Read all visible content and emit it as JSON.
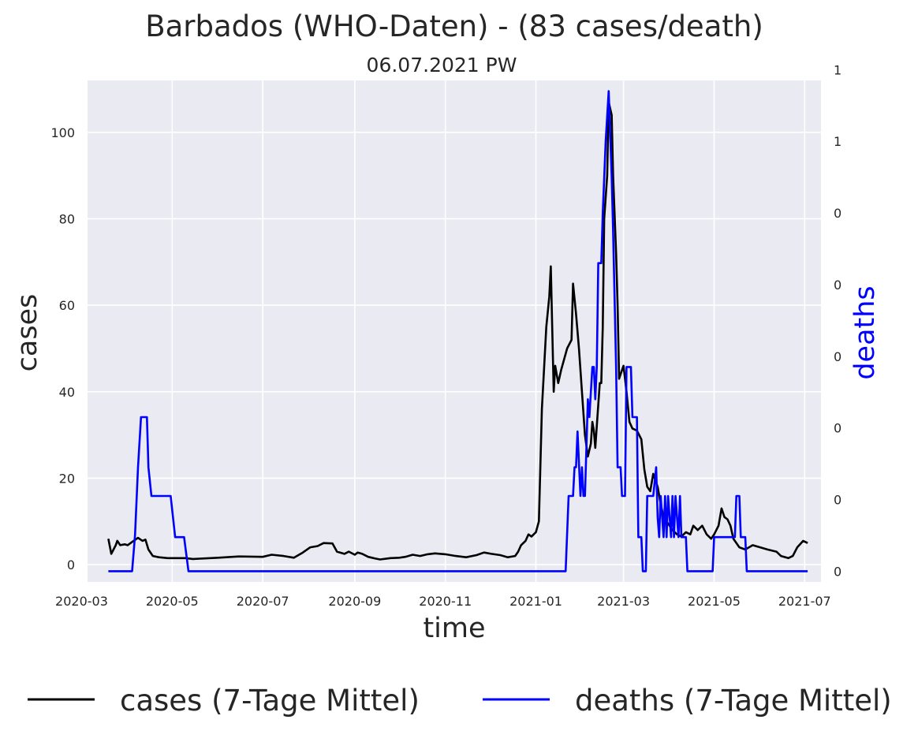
{
  "chart_data": {
    "type": "line",
    "title": "Barbados (WHO-Daten) - (83 cases/death)",
    "subtitle": "06.07.2021 PW",
    "xlabel": "time",
    "ylabel": "cases",
    "ylabel_right": "deaths",
    "x_ticks": [
      "2020-03",
      "2020-05",
      "2020-07",
      "2020-09",
      "2020-11",
      "2021-01",
      "2021-03",
      "2021-05",
      "2021-07"
    ],
    "y_ticks": [
      0,
      20,
      40,
      60,
      80,
      100
    ],
    "y_right_ticks": [
      "0",
      "0",
      "0",
      "0",
      "0",
      "0",
      "1",
      "1"
    ],
    "xlim": [
      "2020-03-05",
      "2021-07-12"
    ],
    "ylim": [
      -4,
      112
    ],
    "y2lim": [
      -0.03,
      1.37
    ],
    "grid": true,
    "legend_placement": "bottom-center",
    "series": [
      {
        "name": "cases (7-Tage Mittel)",
        "axis": "left",
        "color": "#000000",
        "points": [
          [
            "2020-03-19",
            6
          ],
          [
            "2020-03-21",
            2.5
          ],
          [
            "2020-03-24",
            4.5
          ],
          [
            "2020-03-25",
            5.5
          ],
          [
            "2020-03-27",
            4.5
          ],
          [
            "2020-03-30",
            4.7
          ],
          [
            "2020-04-01",
            4.5
          ],
          [
            "2020-04-05",
            5.5
          ],
          [
            "2020-04-08",
            6.2
          ],
          [
            "2020-04-11",
            5.5
          ],
          [
            "2020-04-13",
            5.8
          ],
          [
            "2020-04-15",
            3.5
          ],
          [
            "2020-04-18",
            2
          ],
          [
            "2020-04-22",
            1.7
          ],
          [
            "2020-04-28",
            1.5
          ],
          [
            "2020-05-01",
            1.5
          ],
          [
            "2020-05-10",
            1.5
          ],
          [
            "2020-05-15",
            1.3
          ],
          [
            "2020-06-01",
            1.6
          ],
          [
            "2020-06-15",
            1.9
          ],
          [
            "2020-07-01",
            1.8
          ],
          [
            "2020-07-07",
            2.3
          ],
          [
            "2020-07-15",
            2
          ],
          [
            "2020-07-22",
            1.6
          ],
          [
            "2020-07-28",
            2.8
          ],
          [
            "2020-08-02",
            4
          ],
          [
            "2020-08-07",
            4.3
          ],
          [
            "2020-08-11",
            5
          ],
          [
            "2020-08-17",
            4.9
          ],
          [
            "2020-08-20",
            3
          ],
          [
            "2020-08-25",
            2.5
          ],
          [
            "2020-08-28",
            3
          ],
          [
            "2020-09-01",
            2.3
          ],
          [
            "2020-09-03",
            2.8
          ],
          [
            "2020-09-06",
            2.5
          ],
          [
            "2020-09-10",
            1.8
          ],
          [
            "2020-09-15",
            1.4
          ],
          [
            "2020-09-18",
            1.2
          ],
          [
            "2020-09-25",
            1.5
          ],
          [
            "2020-10-01",
            1.6
          ],
          [
            "2020-10-05",
            1.8
          ],
          [
            "2020-10-10",
            2.3
          ],
          [
            "2020-10-15",
            2
          ],
          [
            "2020-10-20",
            2.4
          ],
          [
            "2020-10-25",
            2.6
          ],
          [
            "2020-11-01",
            2.4
          ],
          [
            "2020-11-08",
            2
          ],
          [
            "2020-11-15",
            1.7
          ],
          [
            "2020-11-22",
            2.2
          ],
          [
            "2020-11-27",
            2.8
          ],
          [
            "2020-12-02",
            2.5
          ],
          [
            "2020-12-08",
            2.2
          ],
          [
            "2020-12-13",
            1.7
          ],
          [
            "2020-12-18",
            2
          ],
          [
            "2020-12-20",
            3
          ],
          [
            "2020-12-22",
            4.5
          ],
          [
            "2020-12-25",
            5.5
          ],
          [
            "2020-12-27",
            7
          ],
          [
            "2020-12-29",
            6.5
          ],
          [
            "2021-01-01",
            7.5
          ],
          [
            "2021-01-03",
            10
          ],
          [
            "2021-01-05",
            36
          ],
          [
            "2021-01-08",
            55
          ],
          [
            "2021-01-10",
            62
          ],
          [
            "2021-01-11",
            69
          ],
          [
            "2021-01-12",
            54
          ],
          [
            "2021-01-13",
            40
          ],
          [
            "2021-01-14",
            46
          ],
          [
            "2021-01-16",
            42
          ],
          [
            "2021-01-18",
            45
          ],
          [
            "2021-01-22",
            50
          ],
          [
            "2021-01-25",
            52
          ],
          [
            "2021-01-26",
            65
          ],
          [
            "2021-01-28",
            58
          ],
          [
            "2021-01-30",
            50
          ],
          [
            "2021-02-01",
            40
          ],
          [
            "2021-02-03",
            30
          ],
          [
            "2021-02-05",
            25
          ],
          [
            "2021-02-07",
            28
          ],
          [
            "2021-02-08",
            33
          ],
          [
            "2021-02-09",
            31
          ],
          [
            "2021-02-10",
            27
          ],
          [
            "2021-02-12",
            37
          ],
          [
            "2021-02-13",
            42
          ],
          [
            "2021-02-14",
            42
          ],
          [
            "2021-02-15",
            55
          ],
          [
            "2021-02-16",
            80
          ],
          [
            "2021-02-18",
            90
          ],
          [
            "2021-02-19",
            107
          ],
          [
            "2021-02-21",
            104
          ],
          [
            "2021-02-22",
            90
          ],
          [
            "2021-02-24",
            72
          ],
          [
            "2021-02-25",
            60
          ],
          [
            "2021-02-26",
            43
          ],
          [
            "2021-02-28",
            45
          ],
          [
            "2021-03-01",
            46
          ],
          [
            "2021-03-03",
            40
          ],
          [
            "2021-03-05",
            33
          ],
          [
            "2021-03-07",
            31.5
          ],
          [
            "2021-03-10",
            31
          ],
          [
            "2021-03-13",
            29
          ],
          [
            "2021-03-15",
            22
          ],
          [
            "2021-03-17",
            18
          ],
          [
            "2021-03-19",
            17
          ],
          [
            "2021-03-21",
            21
          ],
          [
            "2021-03-24",
            18
          ],
          [
            "2021-03-26",
            14
          ],
          [
            "2021-03-28",
            11
          ],
          [
            "2021-03-31",
            9.5
          ],
          [
            "2021-04-03",
            8
          ],
          [
            "2021-04-06",
            7
          ],
          [
            "2021-04-09",
            6.5
          ],
          [
            "2021-04-12",
            7.5
          ],
          [
            "2021-04-15",
            7
          ],
          [
            "2021-04-17",
            9
          ],
          [
            "2021-04-20",
            8
          ],
          [
            "2021-04-23",
            9
          ],
          [
            "2021-04-26",
            7
          ],
          [
            "2021-04-29",
            6
          ],
          [
            "2021-05-01",
            7
          ],
          [
            "2021-05-04",
            9
          ],
          [
            "2021-05-06",
            13
          ],
          [
            "2021-05-08",
            11
          ],
          [
            "2021-05-10",
            10.5
          ],
          [
            "2021-05-12",
            9
          ],
          [
            "2021-05-14",
            6
          ],
          [
            "2021-05-18",
            4
          ],
          [
            "2021-05-22",
            3.5
          ],
          [
            "2021-05-27",
            4.5
          ],
          [
            "2021-06-01",
            4
          ],
          [
            "2021-06-06",
            3.5
          ],
          [
            "2021-06-12",
            3
          ],
          [
            "2021-06-15",
            2
          ],
          [
            "2021-06-20",
            1.5
          ],
          [
            "2021-06-23",
            2
          ],
          [
            "2021-06-26",
            4
          ],
          [
            "2021-06-30",
            5.5
          ],
          [
            "2021-07-03",
            5
          ]
        ]
      },
      {
        "name": "deaths (7-Tage Mittel)",
        "axis": "right",
        "color": "#0000ff",
        "points": [
          [
            "2020-03-19",
            0
          ],
          [
            "2020-04-04",
            0
          ],
          [
            "2020-04-06",
            0.1
          ],
          [
            "2020-04-08",
            0.29
          ],
          [
            "2020-04-10",
            0.43
          ],
          [
            "2020-04-14",
            0.43
          ],
          [
            "2020-04-15",
            0.29
          ],
          [
            "2020-04-17",
            0.21
          ],
          [
            "2020-04-30",
            0.21
          ],
          [
            "2020-05-03",
            0.095
          ],
          [
            "2020-05-09",
            0.095
          ],
          [
            "2020-05-12",
            0
          ],
          [
            "2021-01-21",
            0
          ],
          [
            "2021-01-23",
            0.21
          ],
          [
            "2021-01-26",
            0.21
          ],
          [
            "2021-01-27",
            0.29
          ],
          [
            "2021-01-28",
            0.29
          ],
          [
            "2021-01-29",
            0.39
          ],
          [
            "2021-01-31",
            0.21
          ],
          [
            "2021-02-01",
            0.29
          ],
          [
            "2021-02-02",
            0.21
          ],
          [
            "2021-02-03",
            0.21
          ],
          [
            "2021-02-05",
            0.48
          ],
          [
            "2021-02-06",
            0.43
          ],
          [
            "2021-02-08",
            0.57
          ],
          [
            "2021-02-09",
            0.57
          ],
          [
            "2021-02-10",
            0.48
          ],
          [
            "2021-02-11",
            0.57
          ],
          [
            "2021-02-12",
            0.86
          ],
          [
            "2021-02-14",
            0.86
          ],
          [
            "2021-02-15",
            1.0
          ],
          [
            "2021-02-17",
            1.2
          ],
          [
            "2021-02-19",
            1.34
          ],
          [
            "2021-02-21",
            1.1
          ],
          [
            "2021-02-22",
            0.95
          ],
          [
            "2021-02-24",
            0.57
          ],
          [
            "2021-02-25",
            0.29
          ],
          [
            "2021-02-27",
            0.29
          ],
          [
            "2021-02-28",
            0.21
          ],
          [
            "2021-03-02",
            0.21
          ],
          [
            "2021-03-03",
            0.57
          ],
          [
            "2021-03-04",
            0.57
          ],
          [
            "2021-03-06",
            0.57
          ],
          [
            "2021-03-07",
            0.43
          ],
          [
            "2021-03-10",
            0.43
          ],
          [
            "2021-03-11",
            0.095
          ],
          [
            "2021-03-13",
            0.095
          ],
          [
            "2021-03-14",
            0
          ],
          [
            "2021-03-16",
            0
          ],
          [
            "2021-03-17",
            0.21
          ],
          [
            "2021-03-21",
            0.21
          ],
          [
            "2021-03-23",
            0.29
          ],
          [
            "2021-03-24",
            0.15
          ],
          [
            "2021-03-25",
            0.095
          ],
          [
            "2021-03-26",
            0.21
          ],
          [
            "2021-03-28",
            0.095
          ],
          [
            "2021-03-29",
            0.21
          ],
          [
            "2021-03-30",
            0.095
          ],
          [
            "2021-03-31",
            0.21
          ],
          [
            "2021-04-02",
            0.095
          ],
          [
            "2021-04-03",
            0.21
          ],
          [
            "2021-04-04",
            0.095
          ],
          [
            "2021-04-05",
            0.21
          ],
          [
            "2021-04-07",
            0.095
          ],
          [
            "2021-04-08",
            0.21
          ],
          [
            "2021-04-09",
            0.095
          ],
          [
            "2021-04-12",
            0.095
          ],
          [
            "2021-04-13",
            0
          ],
          [
            "2021-04-30",
            0
          ],
          [
            "2021-05-01",
            0.095
          ],
          [
            "2021-05-15",
            0.095
          ],
          [
            "2021-05-16",
            0.21
          ],
          [
            "2021-05-18",
            0.21
          ],
          [
            "2021-05-19",
            0.095
          ],
          [
            "2021-05-22",
            0.095
          ],
          [
            "2021-05-23",
            0
          ],
          [
            "2021-07-03",
            0
          ]
        ]
      }
    ]
  }
}
